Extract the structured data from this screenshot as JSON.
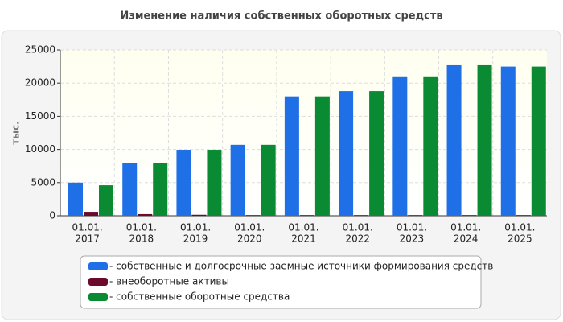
{
  "chart_data": {
    "type": "bar",
    "title": "Изменение наличия собственных оборотных средств",
    "y_label": "тыс.",
    "categories": [
      [
        "01.01.",
        "2017"
      ],
      [
        "01.01.",
        "2018"
      ],
      [
        "01.01.",
        "2019"
      ],
      [
        "01.01.",
        "2020"
      ],
      [
        "01.01.",
        "2021"
      ],
      [
        "01.01.",
        "2022"
      ],
      [
        "01.01.",
        "2023"
      ],
      [
        "01.01.",
        "2024"
      ],
      [
        "01.01.",
        "2025"
      ]
    ],
    "series": [
      {
        "name": "- собственные и долгосрочные заемные источники формирования средств",
        "color": "#1f6fe6",
        "values": [
          5000,
          7900,
          9950,
          10700,
          18000,
          18800,
          20900,
          22700,
          22500
        ]
      },
      {
        "name": "- внеоборотные активы",
        "color": "#6b0a2a",
        "values": [
          600,
          250,
          150,
          100,
          100,
          100,
          100,
          100,
          100
        ]
      },
      {
        "name": "- собственные оборотные средства",
        "color": "#0a8a32",
        "values": [
          4600,
          7900,
          9950,
          10700,
          18000,
          18800,
          20900,
          22700,
          22500
        ]
      }
    ],
    "ylim": [
      0,
      25000
    ],
    "yticks": [
      0,
      5000,
      10000,
      15000,
      20000,
      25000
    ],
    "grid": true
  }
}
